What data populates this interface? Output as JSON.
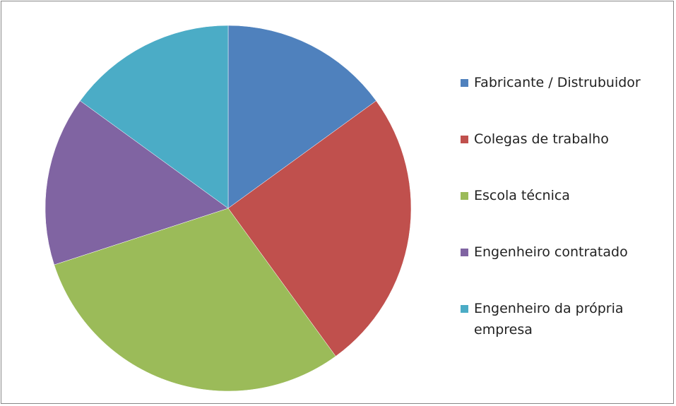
{
  "chart_data": {
    "type": "pie",
    "categories": [
      "Fabricante / Distrubuidor",
      "Colegas de trabalho",
      "Escola técnica",
      "Engenheiro contratado",
      "Engenheiro da própria empresa"
    ],
    "values": [
      15,
      25,
      30,
      15,
      15
    ],
    "colors": [
      "#4f81bd",
      "#c0504d",
      "#9bbb59",
      "#8064a2",
      "#4bacc6"
    ],
    "legend": "right"
  }
}
